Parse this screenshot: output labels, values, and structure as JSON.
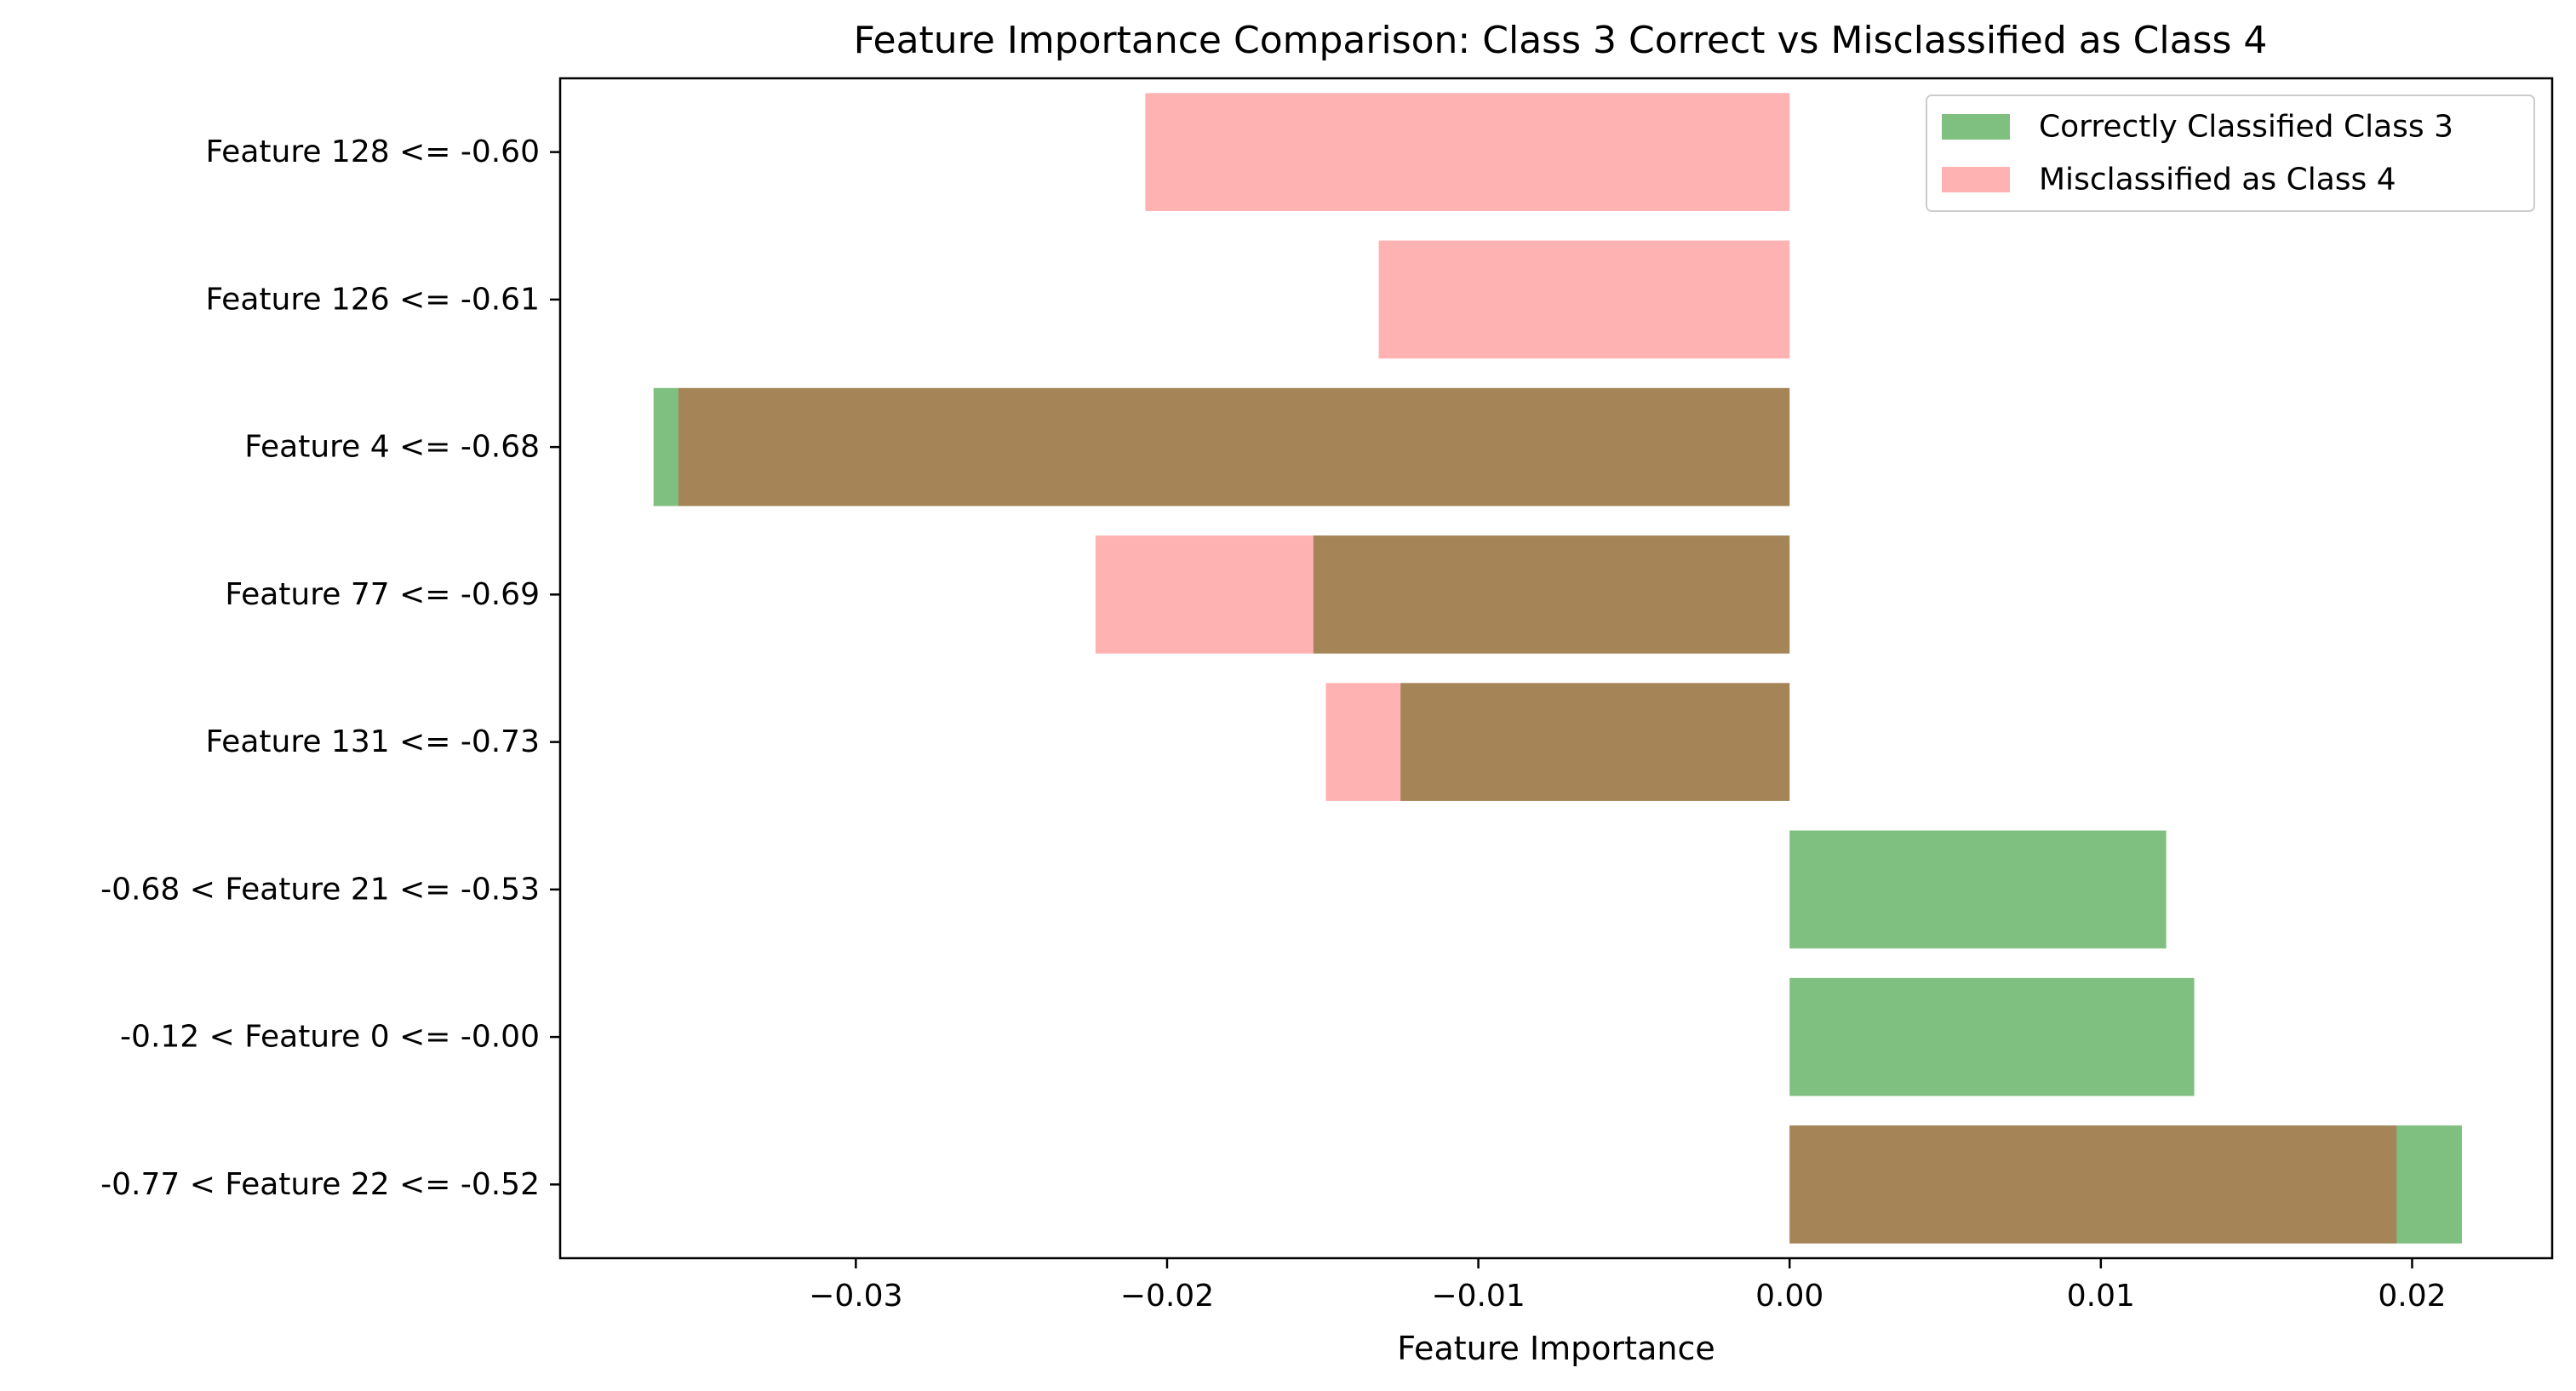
{
  "chart_data": {
    "type": "bar",
    "orientation": "horizontal",
    "title": "Feature Importance Comparison: Class 3 Correct vs Misclassified as Class 4",
    "xlabel": "Feature Importance",
    "ylabel": "",
    "xlim": [
      -0.0395,
      0.0245
    ],
    "xticks": [
      -0.03,
      -0.02,
      -0.01,
      0.0,
      0.01,
      0.02
    ],
    "xtick_labels": [
      "−0.03",
      "−0.02",
      "−0.01",
      "0.00",
      "0.01",
      "0.02"
    ],
    "grid": false,
    "legend_position": "top-right",
    "categories": [
      "Feature 128 <= -0.60",
      "Feature 126 <= -0.61",
      "Feature 4 <= -0.68",
      "Feature 77 <= -0.69",
      "Feature 131 <= -0.73",
      "-0.68 < Feature 21 <= -0.53",
      "-0.12 < Feature 0 <= -0.00",
      "-0.77 < Feature 22 <= -0.52"
    ],
    "series": [
      {
        "name": "Correctly Classified Class 3",
        "color": "#008000",
        "alpha": 0.5,
        "values": [
          0,
          0,
          -0.0365,
          -0.0153,
          -0.0125,
          0.0121,
          0.013,
          0.0216
        ]
      },
      {
        "name": "Misclassified as Class 4",
        "color": "#ff0000",
        "alpha": 0.3,
        "values": [
          -0.0207,
          -0.0132,
          -0.0357,
          -0.0223,
          -0.0149,
          0,
          0,
          0.0195
        ]
      }
    ]
  }
}
